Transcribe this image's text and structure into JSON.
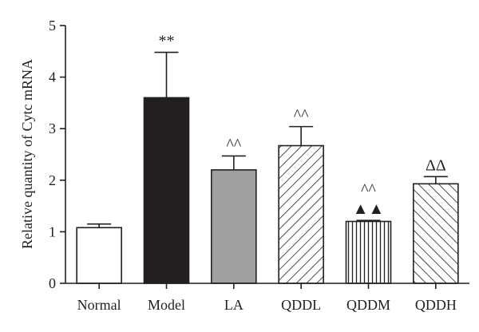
{
  "chart_data": {
    "type": "bar",
    "ylabel": "Relative quantity of Cytc mRNA",
    "xlabel": "",
    "ylim": [
      0,
      5
    ],
    "yticks": [
      "0",
      "1",
      "2",
      "3",
      "4",
      "5"
    ],
    "categories": [
      "Normal",
      "Model",
      "LA",
      "QDDL",
      "QDDM",
      "QDDH"
    ],
    "values": [
      1.08,
      3.6,
      2.2,
      2.67,
      1.2,
      1.93
    ],
    "errors": [
      0.07,
      0.88,
      0.27,
      0.37,
      0.02,
      0.14
    ],
    "fills": [
      "white",
      "black",
      "gray",
      "diag-back",
      "vertical",
      "diag-fwd"
    ],
    "annotations": [
      {
        "category": "Model",
        "lines": [
          "**"
        ]
      },
      {
        "category": "LA",
        "lines": [
          "^^"
        ]
      },
      {
        "category": "QDDL",
        "lines": [
          "^^"
        ]
      },
      {
        "category": "QDDM",
        "lines": [
          "^^",
          "▲▲"
        ]
      },
      {
        "category": "QDDH",
        "lines": [
          "ΔΔ"
        ]
      }
    ],
    "grid": false,
    "legend": "none"
  },
  "colors": {
    "axis": "#231f20",
    "bar_black": "#231f20",
    "bar_gray": "#a0a0a0",
    "bar_white": "#ffffff"
  }
}
